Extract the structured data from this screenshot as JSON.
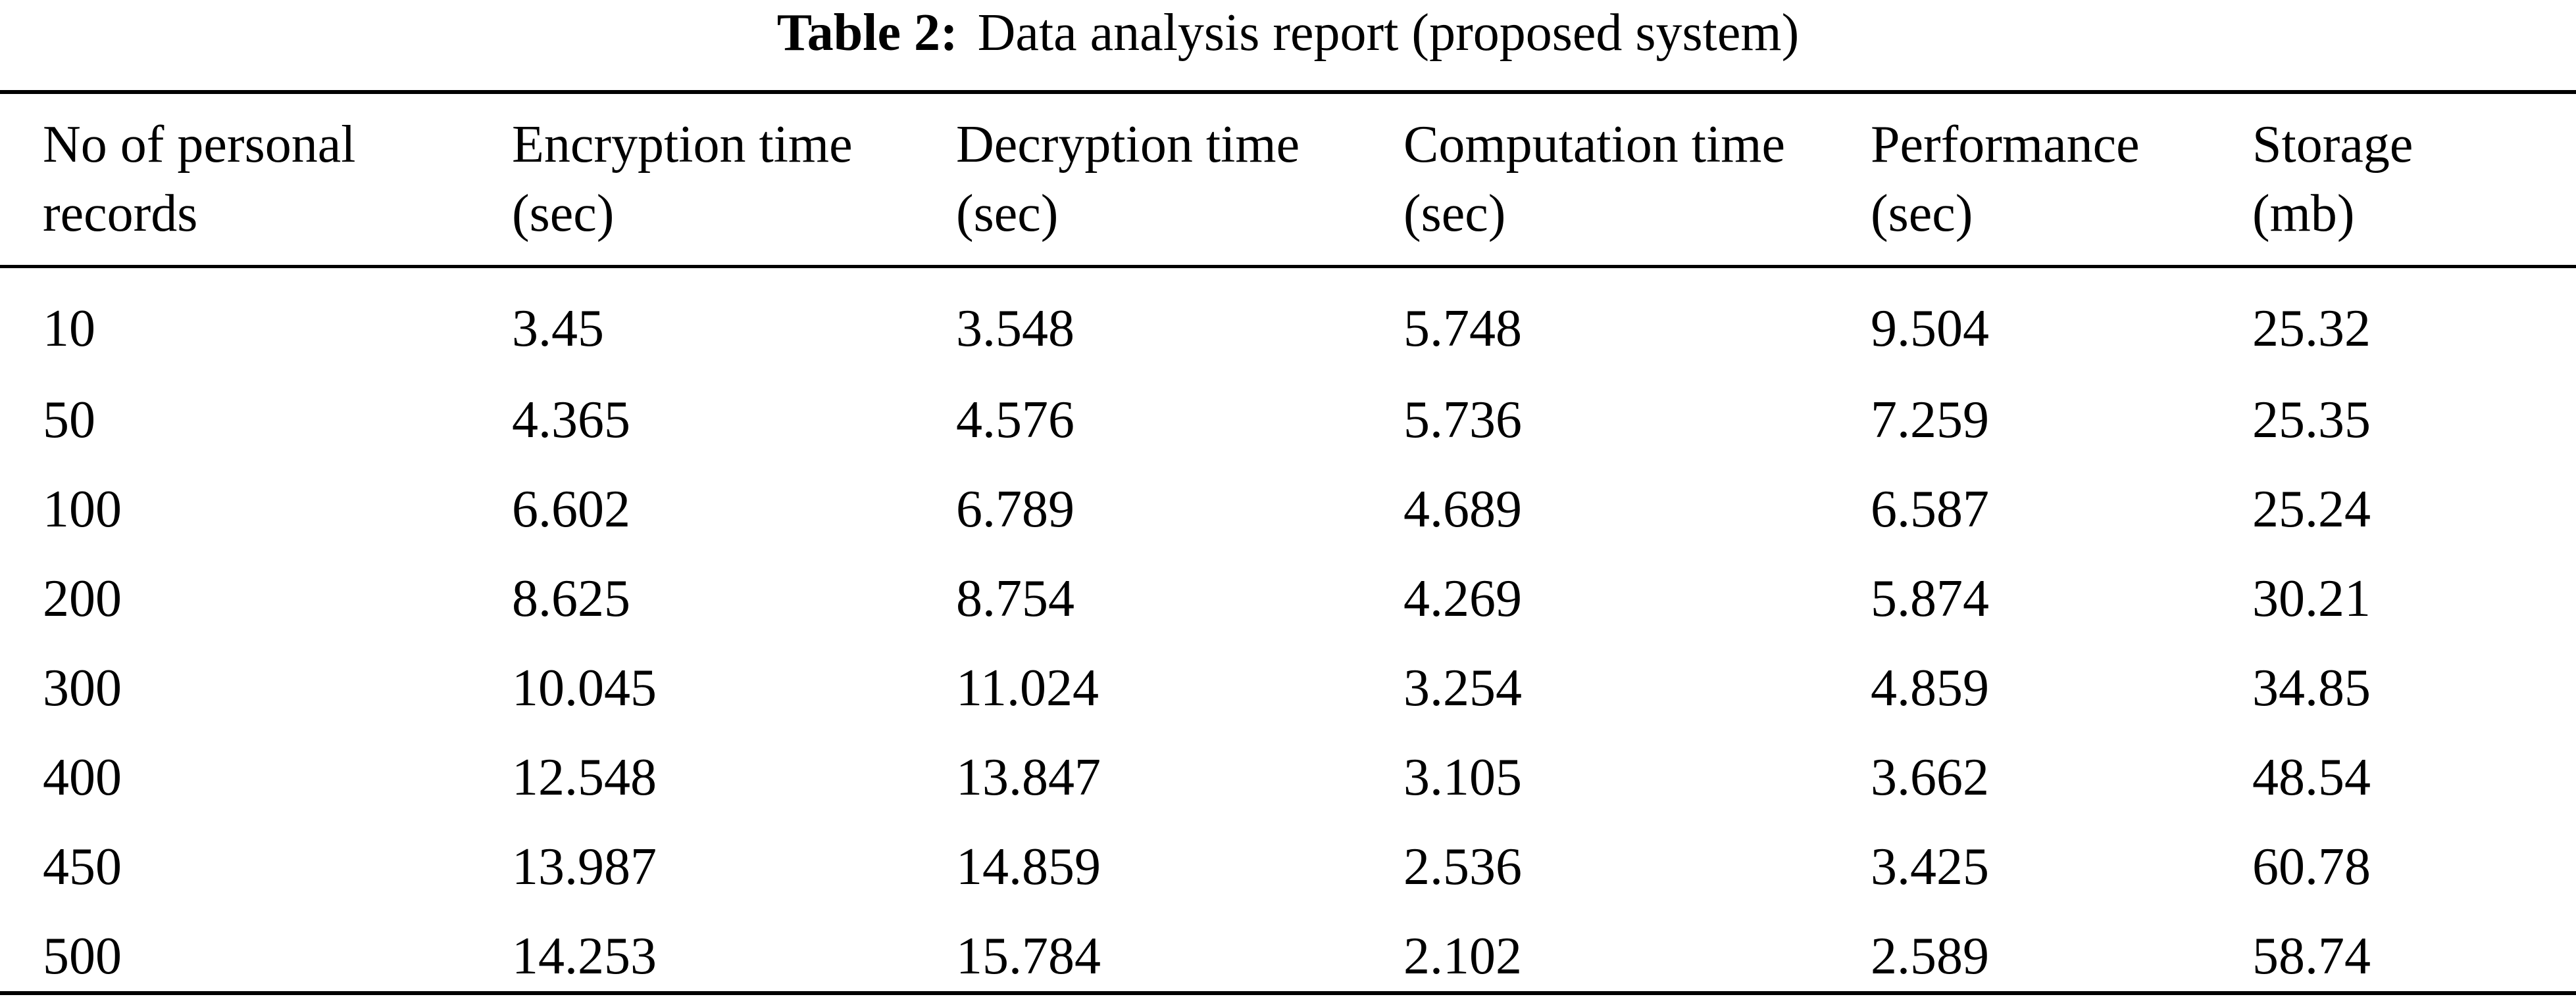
{
  "caption": {
    "label": "Table 2:",
    "text": "Data analysis report (proposed system)"
  },
  "table": {
    "headers": [
      [
        "No of personal",
        "records"
      ],
      [
        "Encryption time",
        "(sec)"
      ],
      [
        "Decryption time",
        "(sec)"
      ],
      [
        "Computation time",
        "(sec)"
      ],
      [
        "Performance",
        "(sec)"
      ],
      [
        "Storage",
        "(mb)"
      ]
    ],
    "rows": [
      [
        "10",
        "3.45",
        "3.548",
        "5.748",
        "9.504",
        "25.32"
      ],
      [
        "50",
        "4.365",
        "4.576",
        "5.736",
        "7.259",
        "25.35"
      ],
      [
        "100",
        "6.602",
        "6.789",
        "4.689",
        "6.587",
        "25.24"
      ],
      [
        "200",
        "8.625",
        "8.754",
        "4.269",
        "5.874",
        "30.21"
      ],
      [
        "300",
        "10.045",
        "11.024",
        "3.254",
        "4.859",
        "34.85"
      ],
      [
        "400",
        "12.548",
        "13.847",
        "3.105",
        "3.662",
        "48.54"
      ],
      [
        "450",
        "13.987",
        "14.859",
        "2.536",
        "3.425",
        "60.78"
      ],
      [
        "500",
        "14.253",
        "15.784",
        "2.102",
        "2.589",
        "58.74"
      ]
    ]
  }
}
